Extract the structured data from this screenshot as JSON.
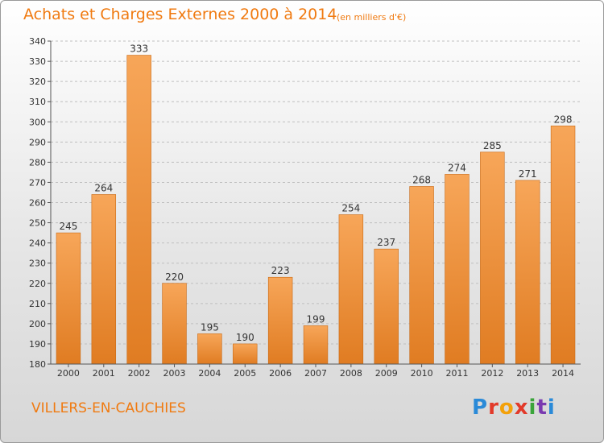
{
  "header": {
    "title": "Achats et Charges Externes 2000 à 2014",
    "subtitle": "(en milliers d'€)"
  },
  "footer": {
    "commune": "VILLERS-EN-CAUCHIES",
    "logo_text": "Proxiti"
  },
  "colors": {
    "accent": "#f07a10",
    "bar_top": "#f7a659",
    "bar_bottom": "#e07c22",
    "grid": "#bfbfbf"
  },
  "chart_data": {
    "type": "bar",
    "title": "Achats et Charges Externes 2000 à 2014",
    "subtitle": "(en milliers d'€)",
    "categories": [
      "2000",
      "2001",
      "2002",
      "2003",
      "2004",
      "2005",
      "2006",
      "2007",
      "2008",
      "2009",
      "2010",
      "2011",
      "2012",
      "2013",
      "2014"
    ],
    "values": [
      245,
      264,
      333,
      220,
      195,
      190,
      223,
      199,
      254,
      237,
      268,
      274,
      285,
      271,
      298
    ],
    "ylim": [
      180,
      340
    ],
    "yticks": [
      180,
      190,
      200,
      210,
      220,
      230,
      240,
      250,
      260,
      270,
      280,
      290,
      300,
      310,
      320,
      330,
      340
    ],
    "grid": true,
    "xlabel": "",
    "ylabel": ""
  }
}
